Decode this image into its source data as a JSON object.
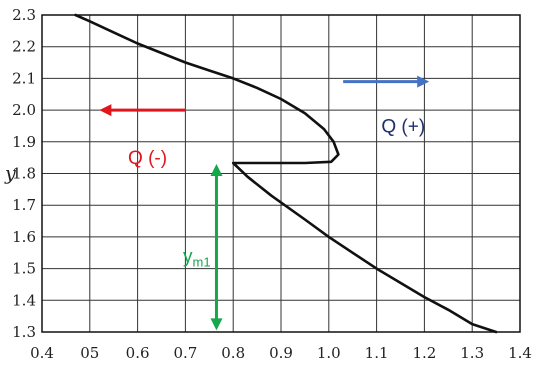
{
  "chart_data": {
    "type": "line",
    "title": "",
    "xlabel": "",
    "ylabel": "y",
    "xlim": [
      0.4,
      1.4
    ],
    "ylim": [
      1.3,
      2.3
    ],
    "grid": true,
    "x_ticks": [
      "0.4",
      "05",
      "0.6",
      "0.7",
      "0.8",
      "0.9",
      "1.0",
      "1.1",
      "1.2",
      "1.3",
      "1.4"
    ],
    "y_ticks": [
      "1.3",
      "1.4",
      "1.5",
      "1.6",
      "1.7",
      "1.8",
      "1.9",
      "2.0",
      "2.1",
      "2.2",
      "2.3"
    ],
    "series": [
      {
        "values": [
          [
            0.47,
            2.3
          ],
          [
            0.5,
            2.28
          ],
          [
            0.55,
            2.245
          ],
          [
            0.6,
            2.21
          ],
          [
            0.65,
            2.18
          ],
          [
            0.7,
            2.15
          ],
          [
            0.75,
            2.125
          ],
          [
            0.8,
            2.1
          ],
          [
            0.85,
            2.07
          ],
          [
            0.9,
            2.035
          ],
          [
            0.95,
            1.99
          ],
          [
            0.99,
            1.94
          ],
          [
            1.01,
            1.9
          ],
          [
            1.02,
            1.86
          ],
          [
            1.005,
            1.837
          ],
          [
            0.95,
            1.833
          ],
          [
            0.88,
            1.833
          ],
          [
            0.8,
            1.833
          ],
          [
            0.83,
            1.79
          ],
          [
            0.88,
            1.73
          ],
          [
            0.95,
            1.655
          ],
          [
            1.0,
            1.6
          ],
          [
            1.05,
            1.55
          ],
          [
            1.1,
            1.5
          ],
          [
            1.15,
            1.455
          ],
          [
            1.2,
            1.41
          ],
          [
            1.25,
            1.37
          ],
          [
            1.3,
            1.325
          ],
          [
            1.35,
            1.3
          ]
        ]
      }
    ],
    "annotations": [
      {
        "id": "q-plus",
        "text": "Q (+)",
        "color": "#1f2f6b",
        "x": 1.11,
        "y": 1.93
      },
      {
        "id": "q-minus",
        "text": "Q (-)",
        "color": "#e2141c",
        "x": 0.58,
        "y": 1.83
      },
      {
        "id": "ym1",
        "text": "y",
        "sub": "m1",
        "color": "#14a84a",
        "x": 0.695,
        "y": 1.52
      }
    ],
    "arrows": [
      {
        "id": "arrow-right",
        "color": "#4472c4",
        "from": [
          1.03,
          2.09
        ],
        "to": [
          1.21,
          2.09
        ]
      },
      {
        "id": "arrow-left",
        "color": "#e2141c",
        "from": [
          0.7,
          2.0
        ],
        "to": [
          0.52,
          2.0
        ]
      },
      {
        "id": "arrow-ym1",
        "color": "#14a84a",
        "from": [
          0.765,
          1.83
        ],
        "to": [
          0.765,
          1.305
        ],
        "double": true
      }
    ]
  }
}
